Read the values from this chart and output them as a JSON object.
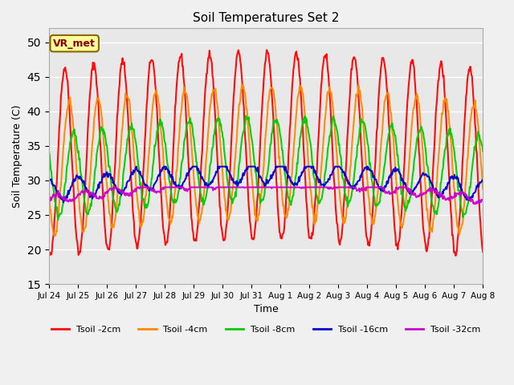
{
  "title": "Soil Temperatures Set 2",
  "xlabel": "Time",
  "ylabel": "Soil Temperature (C)",
  "ylim": [
    15,
    52
  ],
  "yticks": [
    15,
    20,
    25,
    30,
    35,
    40,
    45,
    50
  ],
  "annotation": "VR_met",
  "plot_bg_color": "#e8e8e8",
  "fig_bg_color": "#f0f0f0",
  "series": [
    {
      "label": "Tsoil -2cm",
      "color": "#ff0000",
      "lw": 1.5
    },
    {
      "label": "Tsoil -4cm",
      "color": "#ff8800",
      "lw": 1.5
    },
    {
      "label": "Tsoil -8cm",
      "color": "#00cc00",
      "lw": 1.5
    },
    {
      "label": "Tsoil -16cm",
      "color": "#0000cc",
      "lw": 1.5
    },
    {
      "label": "Tsoil -32cm",
      "color": "#cc00cc",
      "lw": 1.5
    }
  ],
  "xtick_labels": [
    "Jul 24",
    "Jul 25",
    "Jul 26",
    "Jul 27",
    "Jul 28",
    "Jul 29",
    "Jul 30",
    "Jul 31",
    "Aug 1",
    "Aug 2",
    "Aug 3",
    "Aug 4",
    "Aug 5",
    "Aug 6",
    "Aug 7",
    "Aug 8"
  ],
  "n_days": 15,
  "pts_per_day": 48
}
